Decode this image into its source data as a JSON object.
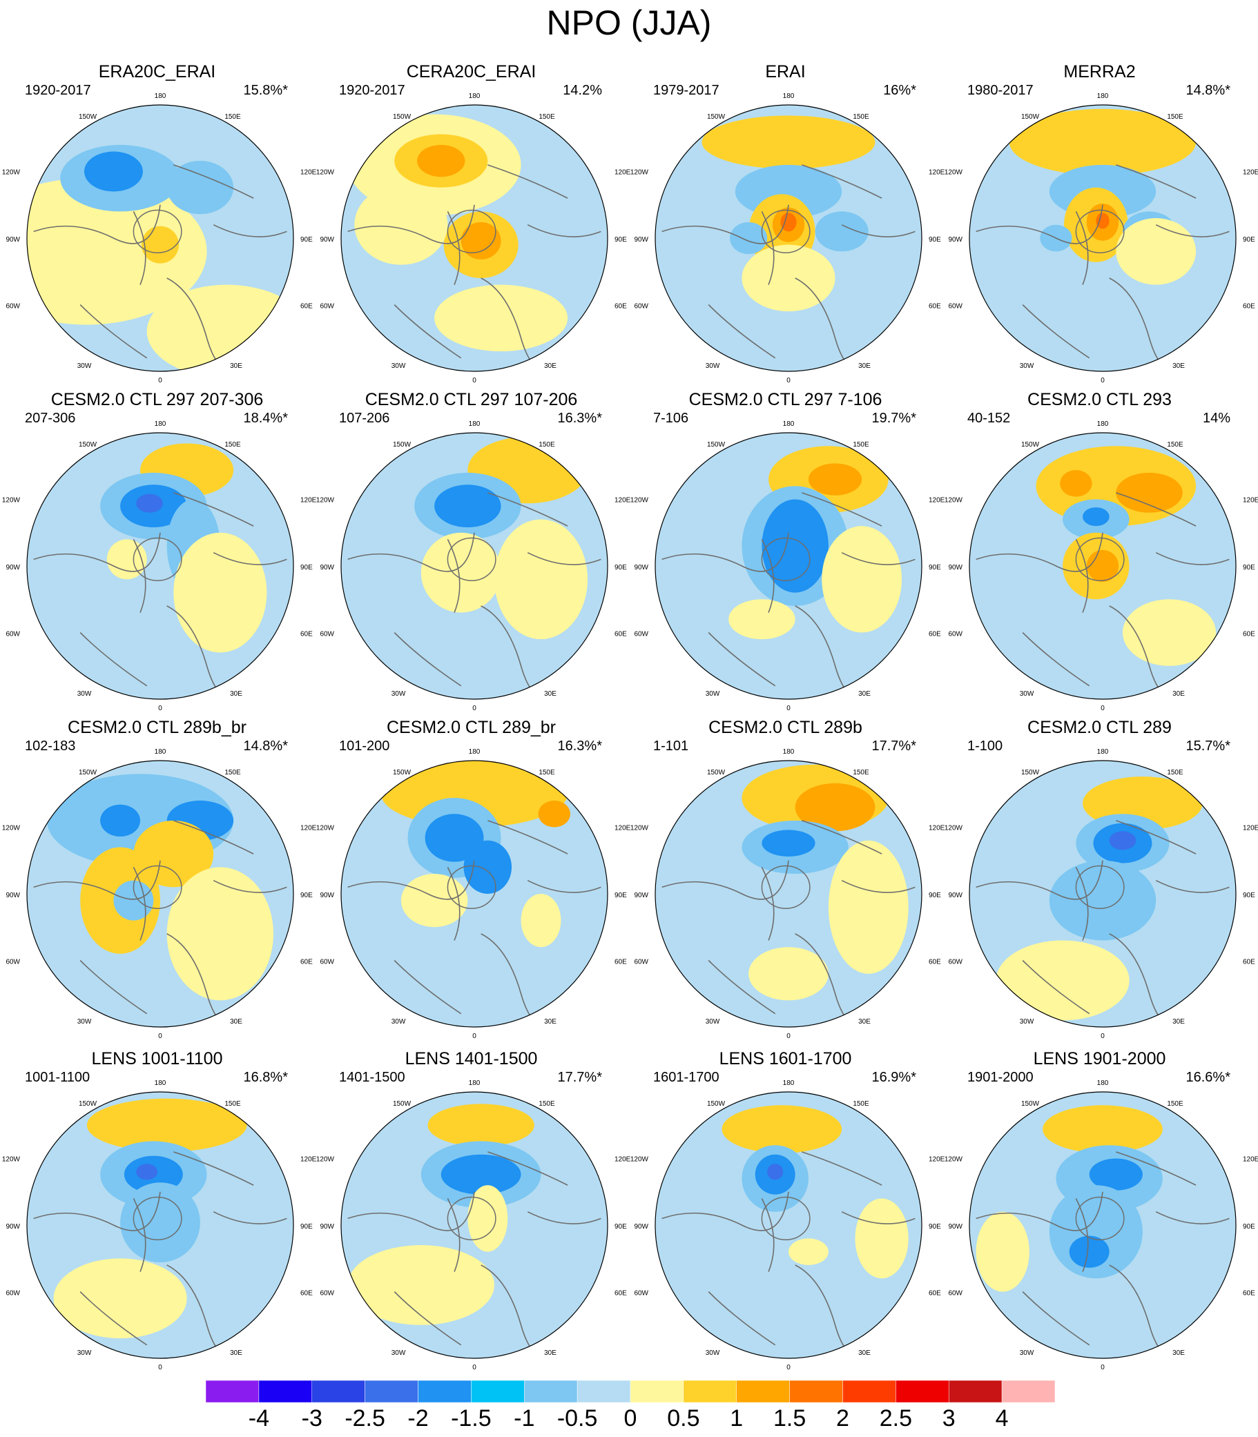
{
  "title": "NPO (JJA)",
  "colors": {
    "coast": "#6e6e6e",
    "rim": "#000000",
    "levels": [
      "#8b1cf0",
      "#1a00f5",
      "#2a43e6",
      "#3a70ea",
      "#1f92f2",
      "#00c2f5",
      "#7dc7f2",
      "#b5dcf2",
      "#fff79b",
      "#ffd22b",
      "#ffa600",
      "#ff7300",
      "#ff3c00",
      "#ee0000",
      "#c81414",
      "#ffb3b3"
    ]
  },
  "map_labels": {
    "top": "180",
    "bottom": "0",
    "tr1": "150E",
    "tr2": "120E",
    "right": "90E",
    "br2": "60E",
    "br1": "30E",
    "tl1": "150W",
    "tl2": "120W",
    "left": "90W",
    "bl2": "60W",
    "bl1": "30W"
  },
  "colorbar": {
    "labels": [
      "-4",
      "-3",
      "-2.5",
      "-2",
      "-1.5",
      "-1",
      "-0.5",
      "0",
      "0.5",
      "1",
      "1.5",
      "2",
      "2.5",
      "3",
      "4"
    ]
  },
  "panels": [
    {
      "title": "ERA20C_ERAI",
      "years": "1920-2017",
      "pct": "15.8%*"
    },
    {
      "title": "CERA20C_ERAI",
      "years": "1920-2017",
      "pct": "14.2%"
    },
    {
      "title": "ERAI",
      "years": "1979-2017",
      "pct": "16%*"
    },
    {
      "title": "MERRA2",
      "years": "1980-2017",
      "pct": "14.8%*"
    },
    {
      "title": "CESM2.0 CTL 297 207-306",
      "years": "207-306",
      "pct": "18.4%*"
    },
    {
      "title": "CESM2.0 CTL 297 107-206",
      "years": "107-206",
      "pct": "16.3%*"
    },
    {
      "title": "CESM2.0 CTL 297 7-106",
      "years": "7-106",
      "pct": "19.7%*"
    },
    {
      "title": "CESM2.0 CTL 293",
      "years": "40-152",
      "pct": "14%"
    },
    {
      "title": "CESM2.0 CTL 289b_br",
      "years": "102-183",
      "pct": "14.8%*"
    },
    {
      "title": "CESM2.0 CTL 289_br",
      "years": "101-200",
      "pct": "16.3%*"
    },
    {
      "title": "CESM2.0 CTL 289b",
      "years": "1-101",
      "pct": "17.7%*"
    },
    {
      "title": "CESM2.0 CTL 289",
      "years": "1-100",
      "pct": "15.7%*"
    },
    {
      "title": "LENS 1001-1100",
      "years": "1001-1100",
      "pct": "16.8%*"
    },
    {
      "title": "LENS 1401-1500",
      "years": "1401-1500",
      "pct": "17.7%*"
    },
    {
      "title": "LENS 1601-1700",
      "years": "1601-1700",
      "pct": "16.9%*"
    },
    {
      "title": "LENS 1901-2000",
      "years": "1901-2000",
      "pct": "16.6%*"
    }
  ]
}
